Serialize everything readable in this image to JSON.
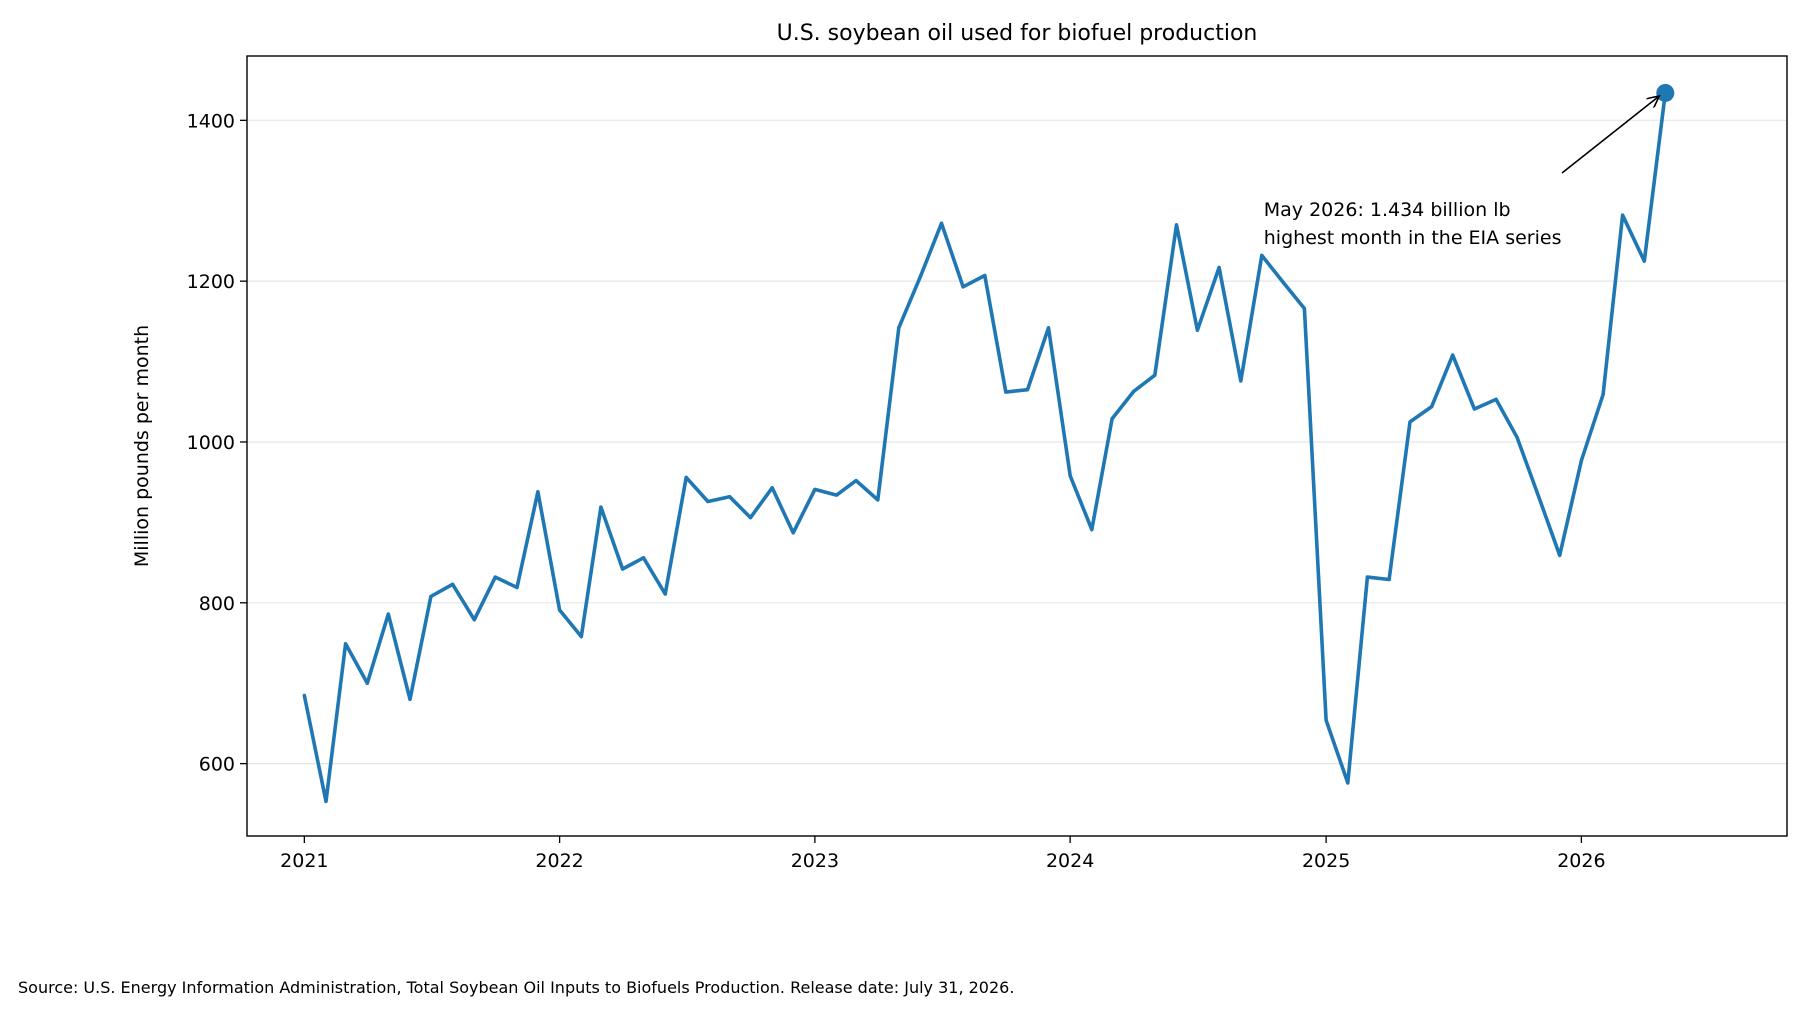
{
  "chart_data": {
    "type": "line",
    "title": "U.S. soybean oil used for biofuel production",
    "xlabel": "",
    "ylabel": "Million pounds per month",
    "xlim": [
      "2020-10-11",
      "2026-10-22"
    ],
    "ylim": [
      510,
      1480
    ],
    "y_ticks": [
      600,
      800,
      1000,
      1200,
      1400
    ],
    "y_tick_labels": [
      "600",
      "800",
      "1000",
      "1200",
      "1400"
    ],
    "x_ticks": [
      "2021-01-01",
      "2022-01-01",
      "2023-01-01",
      "2024-01-01",
      "2025-01-01",
      "2026-01-01"
    ],
    "x_tick_labels": [
      "2021",
      "2022",
      "2023",
      "2024",
      "2025",
      "2026"
    ],
    "grid": "horizontal",
    "series": [
      {
        "color": "#1f77b4",
        "points": [
          {
            "x": "2021-01-01",
            "y": 685
          },
          {
            "x": "2021-02-01",
            "y": 553
          },
          {
            "x": "2021-03-01",
            "y": 749
          },
          {
            "x": "2021-04-01",
            "y": 700
          },
          {
            "x": "2021-05-01",
            "y": 786
          },
          {
            "x": "2021-06-01",
            "y": 680
          },
          {
            "x": "2021-07-01",
            "y": 808
          },
          {
            "x": "2021-08-01",
            "y": 823
          },
          {
            "x": "2021-09-01",
            "y": 779
          },
          {
            "x": "2021-10-01",
            "y": 832
          },
          {
            "x": "2021-11-01",
            "y": 819
          },
          {
            "x": "2021-12-01",
            "y": 938
          },
          {
            "x": "2022-01-01",
            "y": 791
          },
          {
            "x": "2022-02-01",
            "y": 758
          },
          {
            "x": "2022-03-01",
            "y": 919
          },
          {
            "x": "2022-04-01",
            "y": 842
          },
          {
            "x": "2022-05-01",
            "y": 856
          },
          {
            "x": "2022-06-01",
            "y": 811
          },
          {
            "x": "2022-07-01",
            "y": 956
          },
          {
            "x": "2022-08-01",
            "y": 926
          },
          {
            "x": "2022-09-01",
            "y": 932
          },
          {
            "x": "2022-10-01",
            "y": 906
          },
          {
            "x": "2022-11-01",
            "y": 943
          },
          {
            "x": "2022-12-01",
            "y": 887
          },
          {
            "x": "2023-01-01",
            "y": 941
          },
          {
            "x": "2023-02-01",
            "y": 934
          },
          {
            "x": "2023-03-01",
            "y": 952
          },
          {
            "x": "2023-04-01",
            "y": 928
          },
          {
            "x": "2023-05-01",
            "y": 1142
          },
          {
            "x": "2023-06-01",
            "y": 1206
          },
          {
            "x": "2023-07-01",
            "y": 1272
          },
          {
            "x": "2023-08-01",
            "y": 1193
          },
          {
            "x": "2023-09-01",
            "y": 1207
          },
          {
            "x": "2023-10-01",
            "y": 1062
          },
          {
            "x": "2023-11-01",
            "y": 1065
          },
          {
            "x": "2023-12-01",
            "y": 1142
          },
          {
            "x": "2024-01-01",
            "y": 958
          },
          {
            "x": "2024-02-01",
            "y": 891
          },
          {
            "x": "2024-03-01",
            "y": 1029
          },
          {
            "x": "2024-04-01",
            "y": 1063
          },
          {
            "x": "2024-05-01",
            "y": 1083
          },
          {
            "x": "2024-06-01",
            "y": 1270
          },
          {
            "x": "2024-07-01",
            "y": 1139
          },
          {
            "x": "2024-08-01",
            "y": 1217
          },
          {
            "x": "2024-09-01",
            "y": 1076
          },
          {
            "x": "2024-10-01",
            "y": 1232
          },
          {
            "x": "2024-11-01",
            "y": 1198
          },
          {
            "x": "2024-12-01",
            "y": 1166
          },
          {
            "x": "2025-01-01",
            "y": 654
          },
          {
            "x": "2025-02-01",
            "y": 576
          },
          {
            "x": "2025-03-01",
            "y": 832
          },
          {
            "x": "2025-04-01",
            "y": 829
          },
          {
            "x": "2025-05-01",
            "y": 1025
          },
          {
            "x": "2025-06-01",
            "y": 1044
          },
          {
            "x": "2025-07-01",
            "y": 1108
          },
          {
            "x": "2025-08-01",
            "y": 1041
          },
          {
            "x": "2025-09-01",
            "y": 1053
          },
          {
            "x": "2025-10-01",
            "y": 1006
          },
          {
            "x": "2025-11-01",
            "y": 932
          },
          {
            "x": "2025-12-01",
            "y": 859
          },
          {
            "x": "2026-01-01",
            "y": 977
          },
          {
            "x": "2026-02-01",
            "y": 1059
          },
          {
            "x": "2026-03-01",
            "y": 1282
          },
          {
            "x": "2026-04-01",
            "y": 1225
          },
          {
            "x": "2026-05-01",
            "y": 1434
          }
        ]
      }
    ],
    "highlight_point": {
      "x": "2026-05-01",
      "y": 1434
    },
    "annotation": {
      "lines": [
        "May 2026: 1.434 billion lb",
        "highest month in the EIA series"
      ],
      "x": "2024-10-01",
      "y": 1280,
      "arrow_to": {
        "x": "2026-05-01",
        "y": 1434
      }
    }
  },
  "source_note": "Source: U.S. Energy Information Administration, Total Soybean Oil Inputs to Biofuels Production. Release date: July 31, 2026."
}
